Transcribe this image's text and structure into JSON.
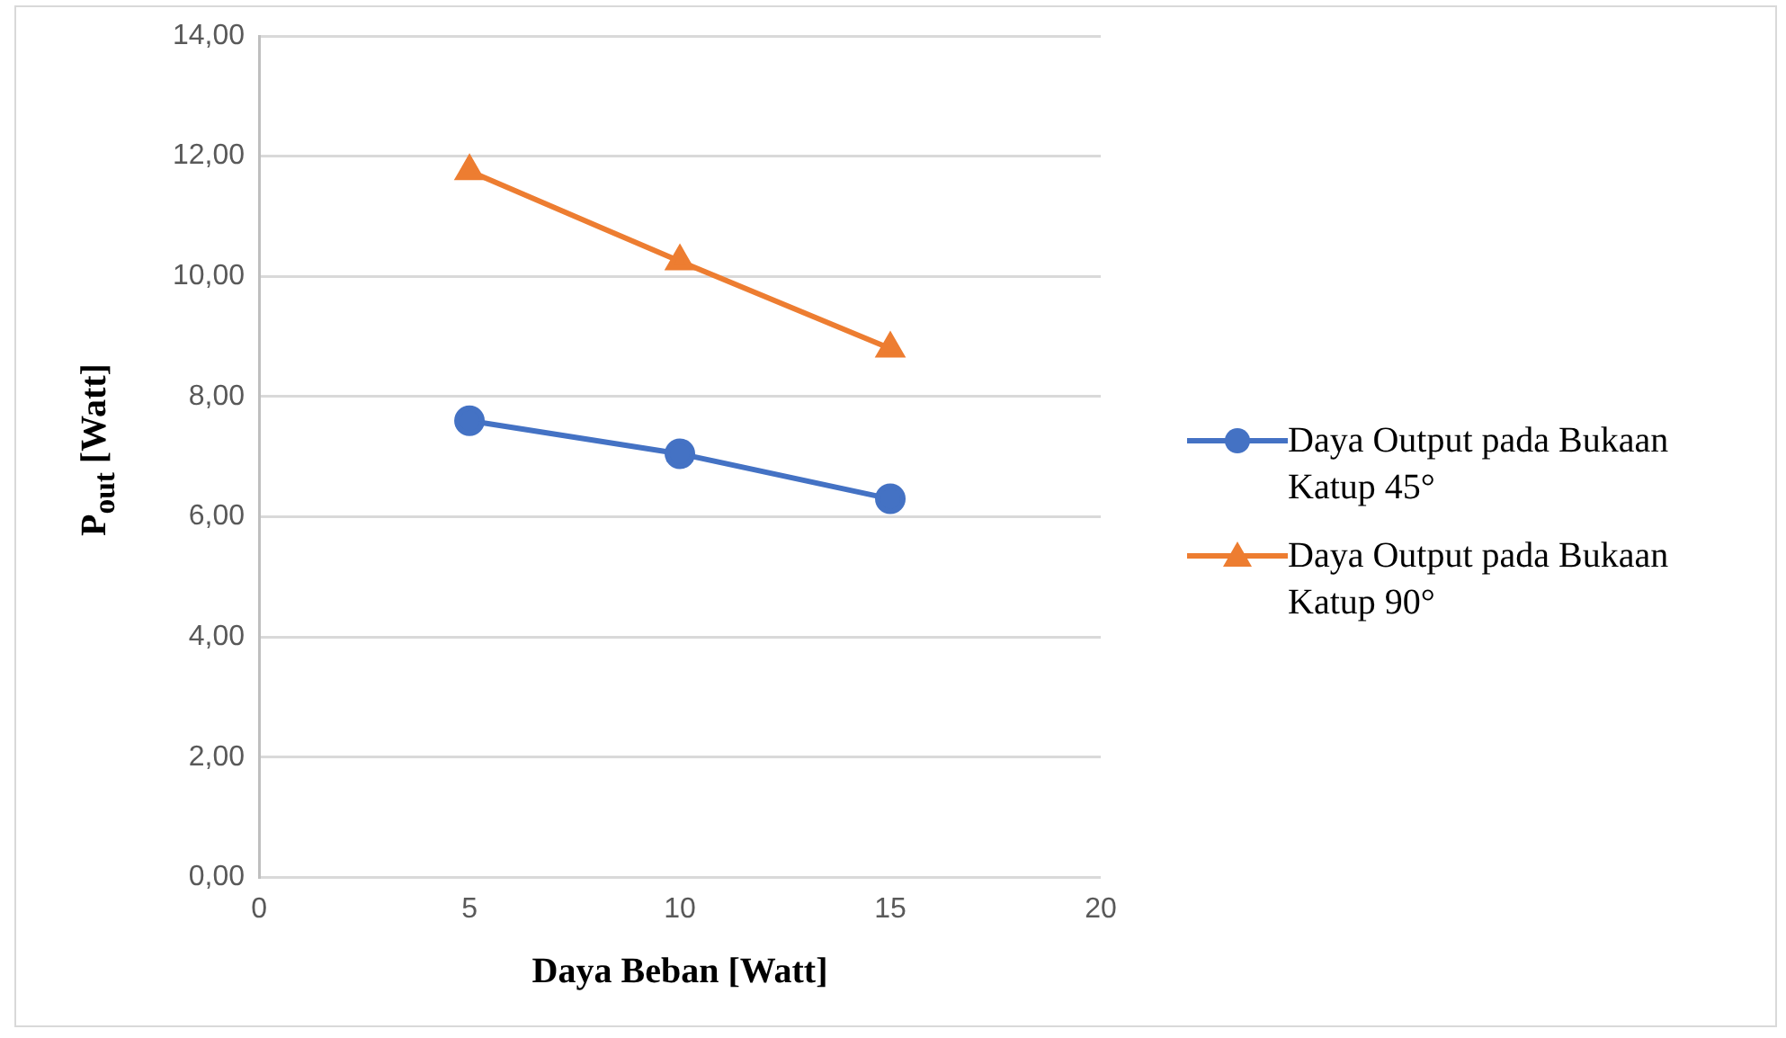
{
  "chart_data": {
    "type": "line",
    "xlabel": "Daya Beban [Watt]",
    "ylabel": "P$_{out}$ [Watt]",
    "x": [
      5,
      10,
      15
    ],
    "series": [
      {
        "name": "Daya Output pada Bukaan Katup 45°",
        "color": "#4472c4",
        "marker": "circle",
        "values": [
          7.6,
          7.05,
          6.3
        ]
      },
      {
        "name": "Daya Output pada Bukaan Katup 90°",
        "color": "#ed7d31",
        "marker": "triangle",
        "values": [
          11.75,
          10.25,
          8.8
        ]
      }
    ],
    "xlim": [
      0,
      20
    ],
    "xticks": [
      0,
      5,
      10,
      15,
      20
    ],
    "ylim": [
      0,
      14
    ],
    "yticks": [
      {
        "value": 0,
        "label": "0,00"
      },
      {
        "value": 2,
        "label": "2,00"
      },
      {
        "value": 4,
        "label": "4,00"
      },
      {
        "value": 6,
        "label": "6,00"
      },
      {
        "value": 8,
        "label": "8,00"
      },
      {
        "value": 10,
        "label": "10,00"
      },
      {
        "value": 12,
        "label": "12,00"
      },
      {
        "value": 14,
        "label": "14,00"
      }
    ],
    "grid": "y",
    "legend": "right"
  }
}
